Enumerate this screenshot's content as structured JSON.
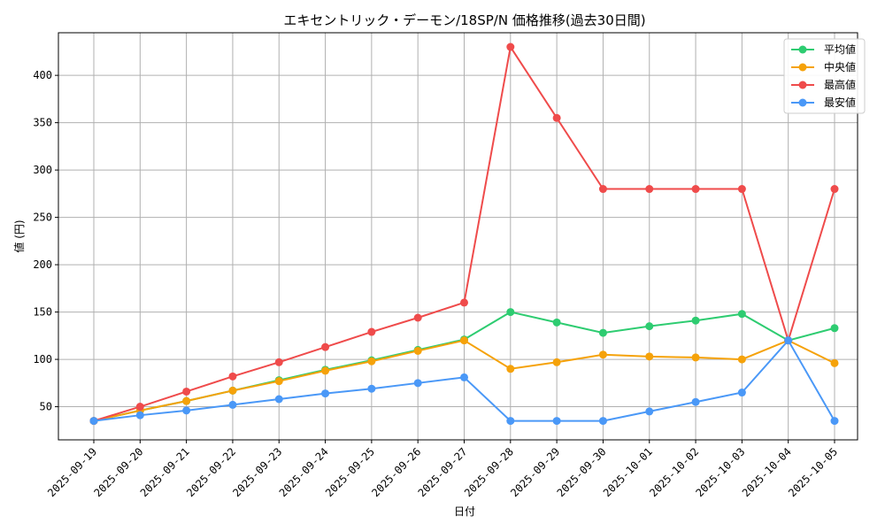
{
  "chart_data": {
    "type": "line",
    "title": "エキセントリック・デーモン/18SP/N 価格推移(過去30日間)",
    "xlabel": "日付",
    "ylabel": "値 (円)",
    "ylim": [
      15,
      445
    ],
    "yticks": [
      50,
      100,
      150,
      200,
      250,
      300,
      350,
      400
    ],
    "grid": true,
    "legend_position": "top-right",
    "categories": [
      "2025-09-19",
      "2025-09-20",
      "2025-09-21",
      "2025-09-22",
      "2025-09-23",
      "2025-09-24",
      "2025-09-25",
      "2025-09-26",
      "2025-09-27",
      "2025-09-28",
      "2025-09-29",
      "2025-09-30",
      "2025-10-01",
      "2025-10-02",
      "2025-10-03",
      "2025-10-04",
      "2025-10-05"
    ],
    "series": [
      {
        "name": "平均値",
        "color": "#2ecc71",
        "values": [
          35,
          46,
          56,
          67,
          78,
          89,
          99,
          110,
          121,
          150,
          139,
          128,
          135,
          141,
          148,
          120,
          133
        ]
      },
      {
        "name": "中央値",
        "color": "#f5a20a",
        "values": [
          35,
          46,
          56,
          67,
          77,
          88,
          98,
          109,
          120,
          90,
          97,
          105,
          103,
          102,
          100,
          120,
          96
        ]
      },
      {
        "name": "最高値",
        "color": "#ef4b4b",
        "values": [
          35,
          50,
          66,
          82,
          97,
          113,
          129,
          144,
          160,
          430,
          355,
          280,
          280,
          280,
          280,
          120,
          280
        ]
      },
      {
        "name": "最安値",
        "color": "#4a98f7",
        "values": [
          35,
          41,
          46,
          52,
          58,
          64,
          69,
          75,
          81,
          35,
          35,
          35,
          45,
          55,
          65,
          120,
          35
        ]
      }
    ]
  }
}
